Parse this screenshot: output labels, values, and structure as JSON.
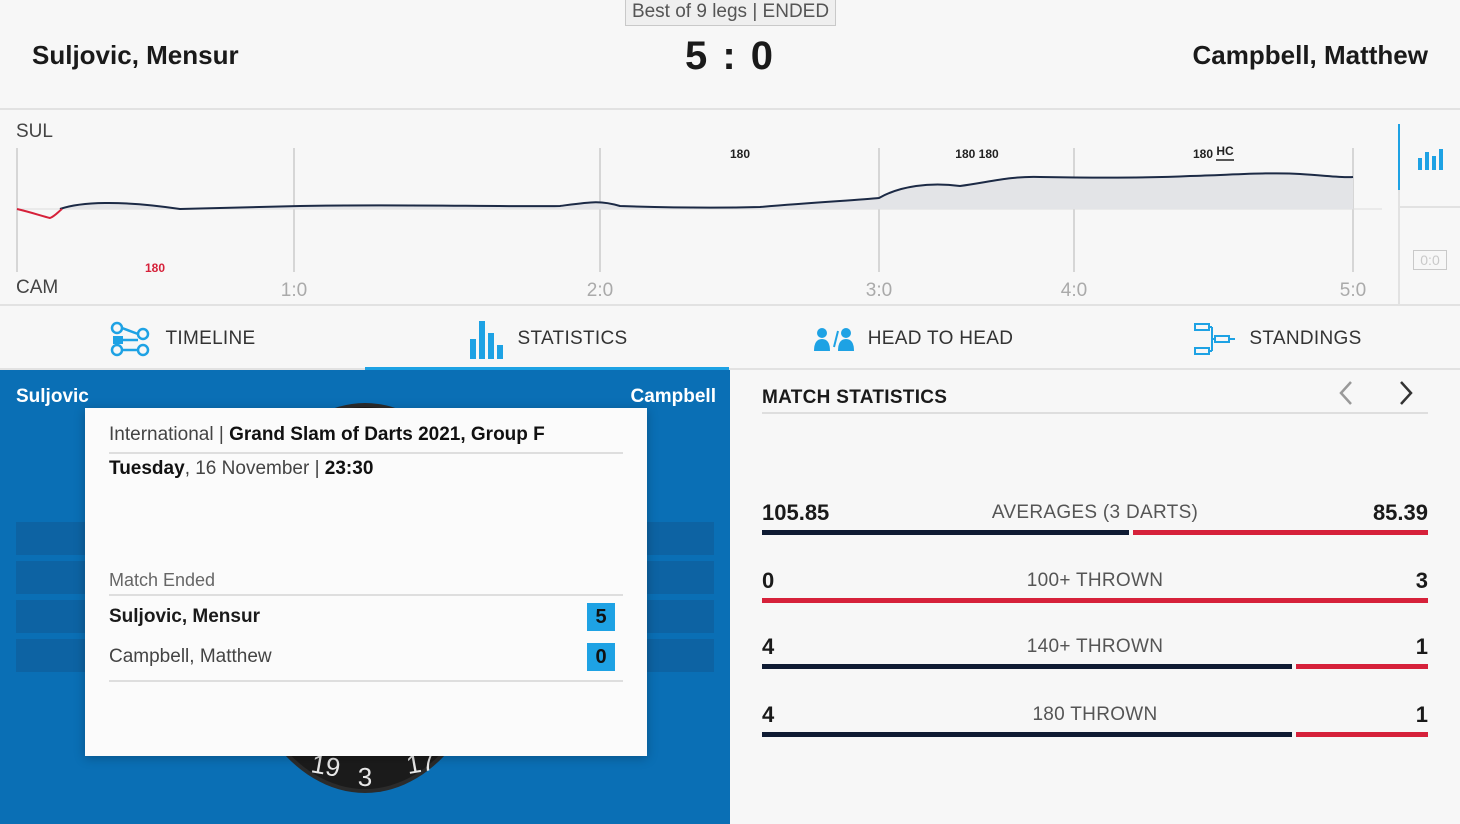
{
  "header": {
    "format": "Best of 9 legs | ENDED",
    "home_player": "Suljovic, Mensur",
    "away_player": "Campbell, Matthew",
    "score": "5 : 0"
  },
  "momentum": {
    "home_abbr": "SUL",
    "away_abbr": "CAM",
    "leg_labels": [
      "1:0",
      "2:0",
      "3:0",
      "4:0",
      "5:0"
    ],
    "home_markers": [
      "180",
      "180 180",
      "180"
    ],
    "home_hc_marker": "HC",
    "away_markers": [
      "180"
    ],
    "reset_badge": "0:0",
    "colors": {
      "home_line": "#1c2a45",
      "away_line": "#d6213a",
      "fill": "#e3e4e7",
      "accent": "#1ea2e4"
    }
  },
  "tabs": [
    {
      "label": "TIMELINE",
      "icon": "timeline-icon",
      "active": false
    },
    {
      "label": "STATISTICS",
      "icon": "statistics-icon",
      "active": true
    },
    {
      "label": "HEAD TO HEAD",
      "icon": "head-to-head-icon",
      "active": false
    },
    {
      "label": "STANDINGS",
      "icon": "standings-icon",
      "active": false
    }
  ],
  "board_panel": {
    "home_short": "Suljovic",
    "away_short": "Campbell",
    "board_numbers": [
      "19",
      "3",
      "17"
    ]
  },
  "match_card": {
    "category": "International",
    "tournament": "Grand Slam of Darts 2021, Group F",
    "weekday": "Tuesday",
    "date": ", 16 November |",
    "time": "23:30",
    "status": "Match Ended",
    "players": [
      {
        "name": "Suljovic, Mensur",
        "score": "5",
        "winner": true
      },
      {
        "name": "Campbell, Matthew",
        "score": "0",
        "winner": false
      }
    ]
  },
  "match_statistics": {
    "title": "MATCH STATISTICS",
    "rows": [
      {
        "label": "AVERAGES (3 DARTS)",
        "home": "105.85",
        "away": "85.39",
        "home_share": 0.554
      },
      {
        "label": "100+ THROWN",
        "home": "0",
        "away": "3",
        "home_share": 0.0
      },
      {
        "label": "140+ THROWN",
        "home": "4",
        "away": "1",
        "home_share": 0.8
      },
      {
        "label": "180 THROWN",
        "home": "4",
        "away": "1",
        "home_share": 0.8
      }
    ]
  }
}
